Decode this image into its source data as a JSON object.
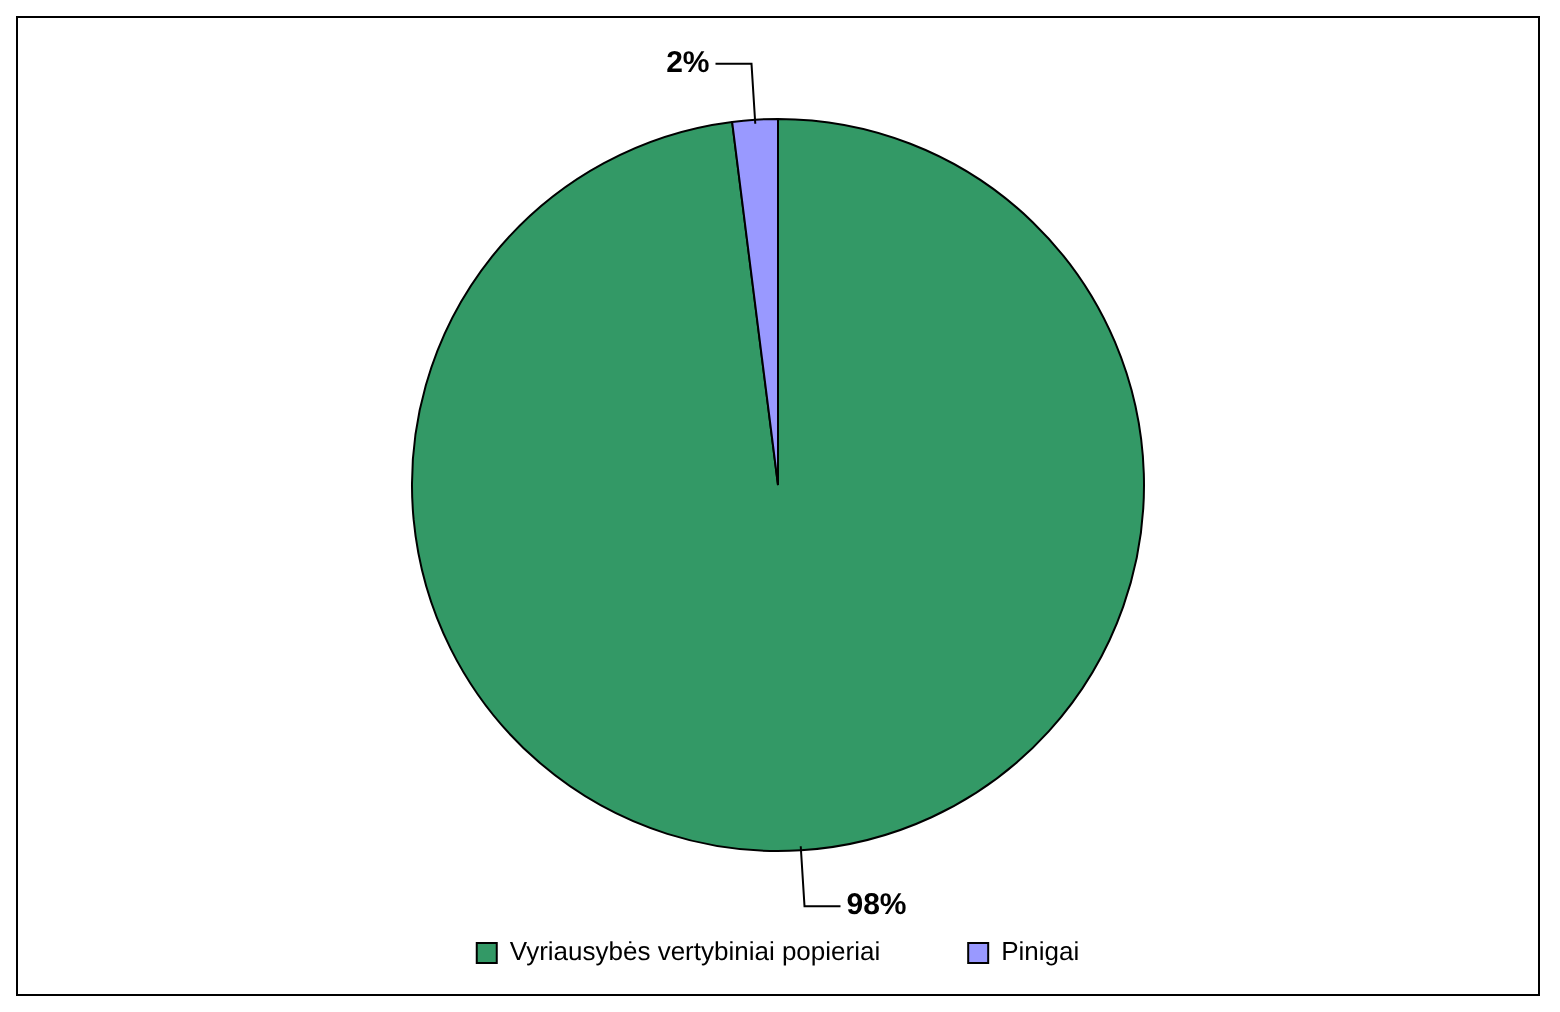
{
  "chart_data": {
    "type": "pie",
    "categories": [
      "Vyriausybės vertybiniai popieriai",
      "Pinigai"
    ],
    "values": [
      98,
      2
    ],
    "colors": [
      "#339966",
      "#9999ff"
    ],
    "value_labels": [
      "98%",
      "2%"
    ],
    "legend": "bottom"
  }
}
